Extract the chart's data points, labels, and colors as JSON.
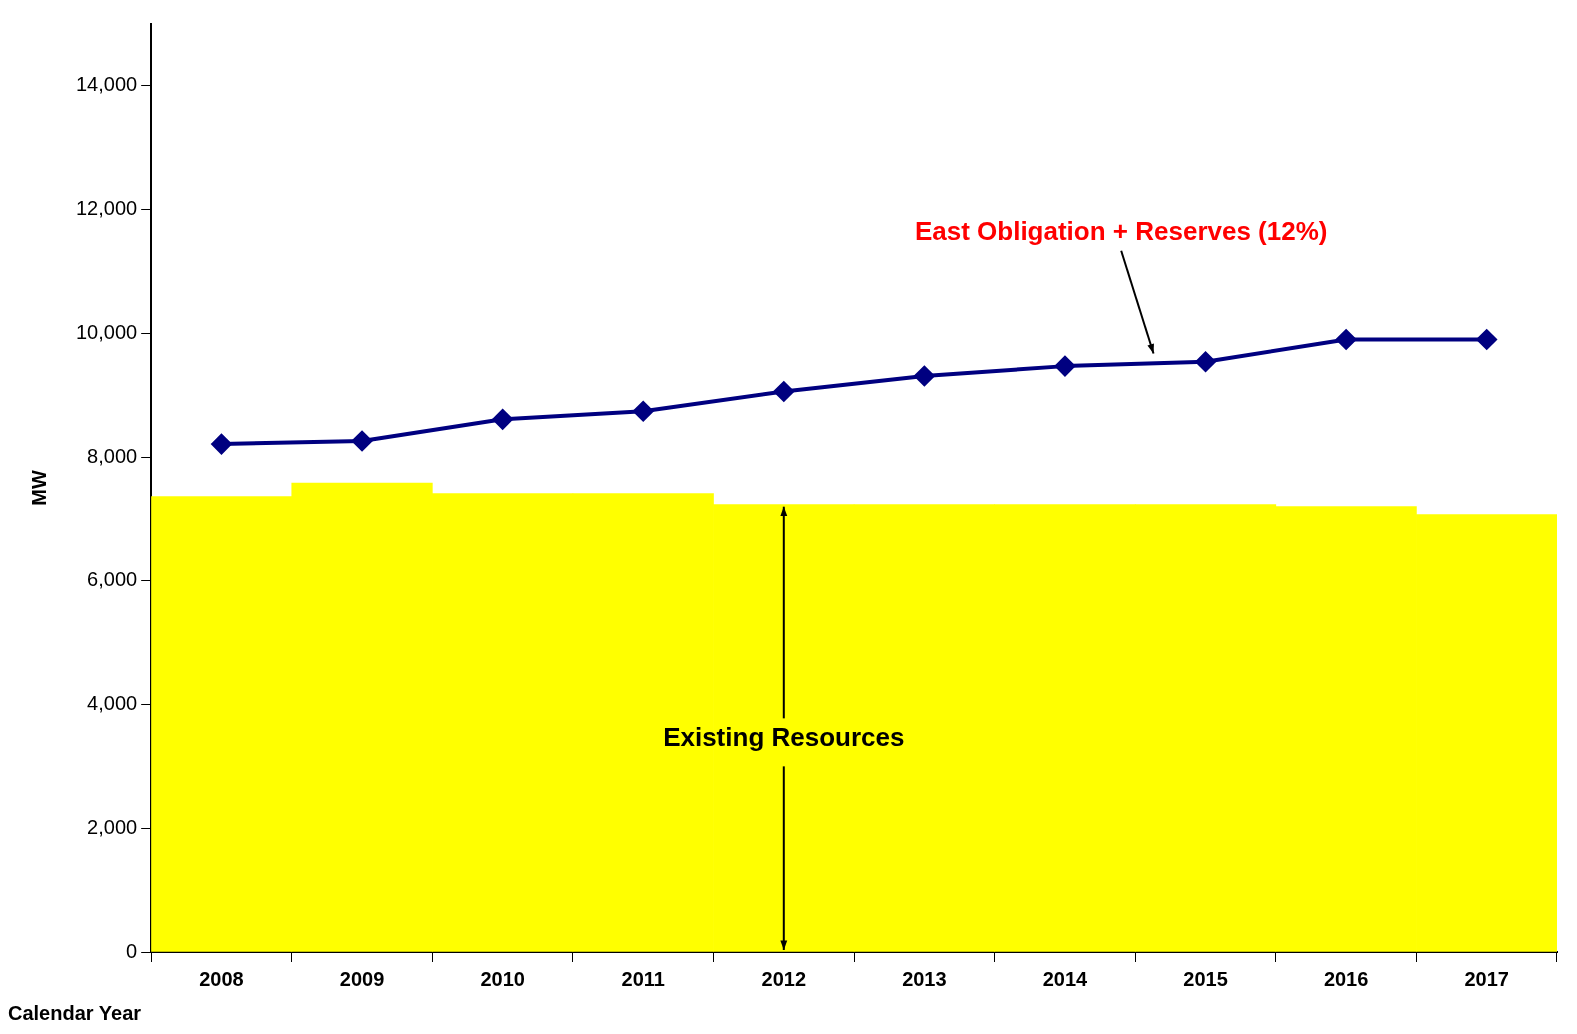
{
  "chart_data": {
    "type": "bar",
    "xlabel": "Calendar Year",
    "ylabel": "MW",
    "categories": [
      "2008",
      "2009",
      "2010",
      "2011",
      "2012",
      "2013",
      "2014",
      "2015",
      "2016",
      "2017"
    ],
    "series": [
      {
        "color": "#ffff00",
        "values": [
          7360,
          7580,
          7410,
          7410,
          7230,
          7230,
          7230,
          7230,
          7200,
          7070
        ]
      },
      {
        "type": "line",
        "color": "#000080",
        "marker": "diamond",
        "values": [
          8210,
          8260,
          8610,
          8740,
          9060,
          9310,
          9470,
          9540,
          9900,
          9900
        ]
      }
    ],
    "ylim": [
      0,
      15000
    ],
    "yticks": [
      0,
      {
        "value": 2000,
        "label": "2,000"
      },
      {
        "value": 4000,
        "label": "4,000"
      },
      {
        "value": 6000,
        "label": "6,000"
      },
      {
        "value": 8000,
        "label": "8,000"
      },
      {
        "value": 10000,
        "label": "10,000"
      },
      {
        "value": 12000,
        "label": "12,000"
      },
      {
        "value": 14000,
        "label": "14,000"
      }
    ],
    "grid": false,
    "legend": false,
    "annotations": [
      "East Obligation + Reserves (12%)",
      {
        "text": "Existing Resources",
        "x": "2012",
        "y": 7230
      }
    ]
  }
}
